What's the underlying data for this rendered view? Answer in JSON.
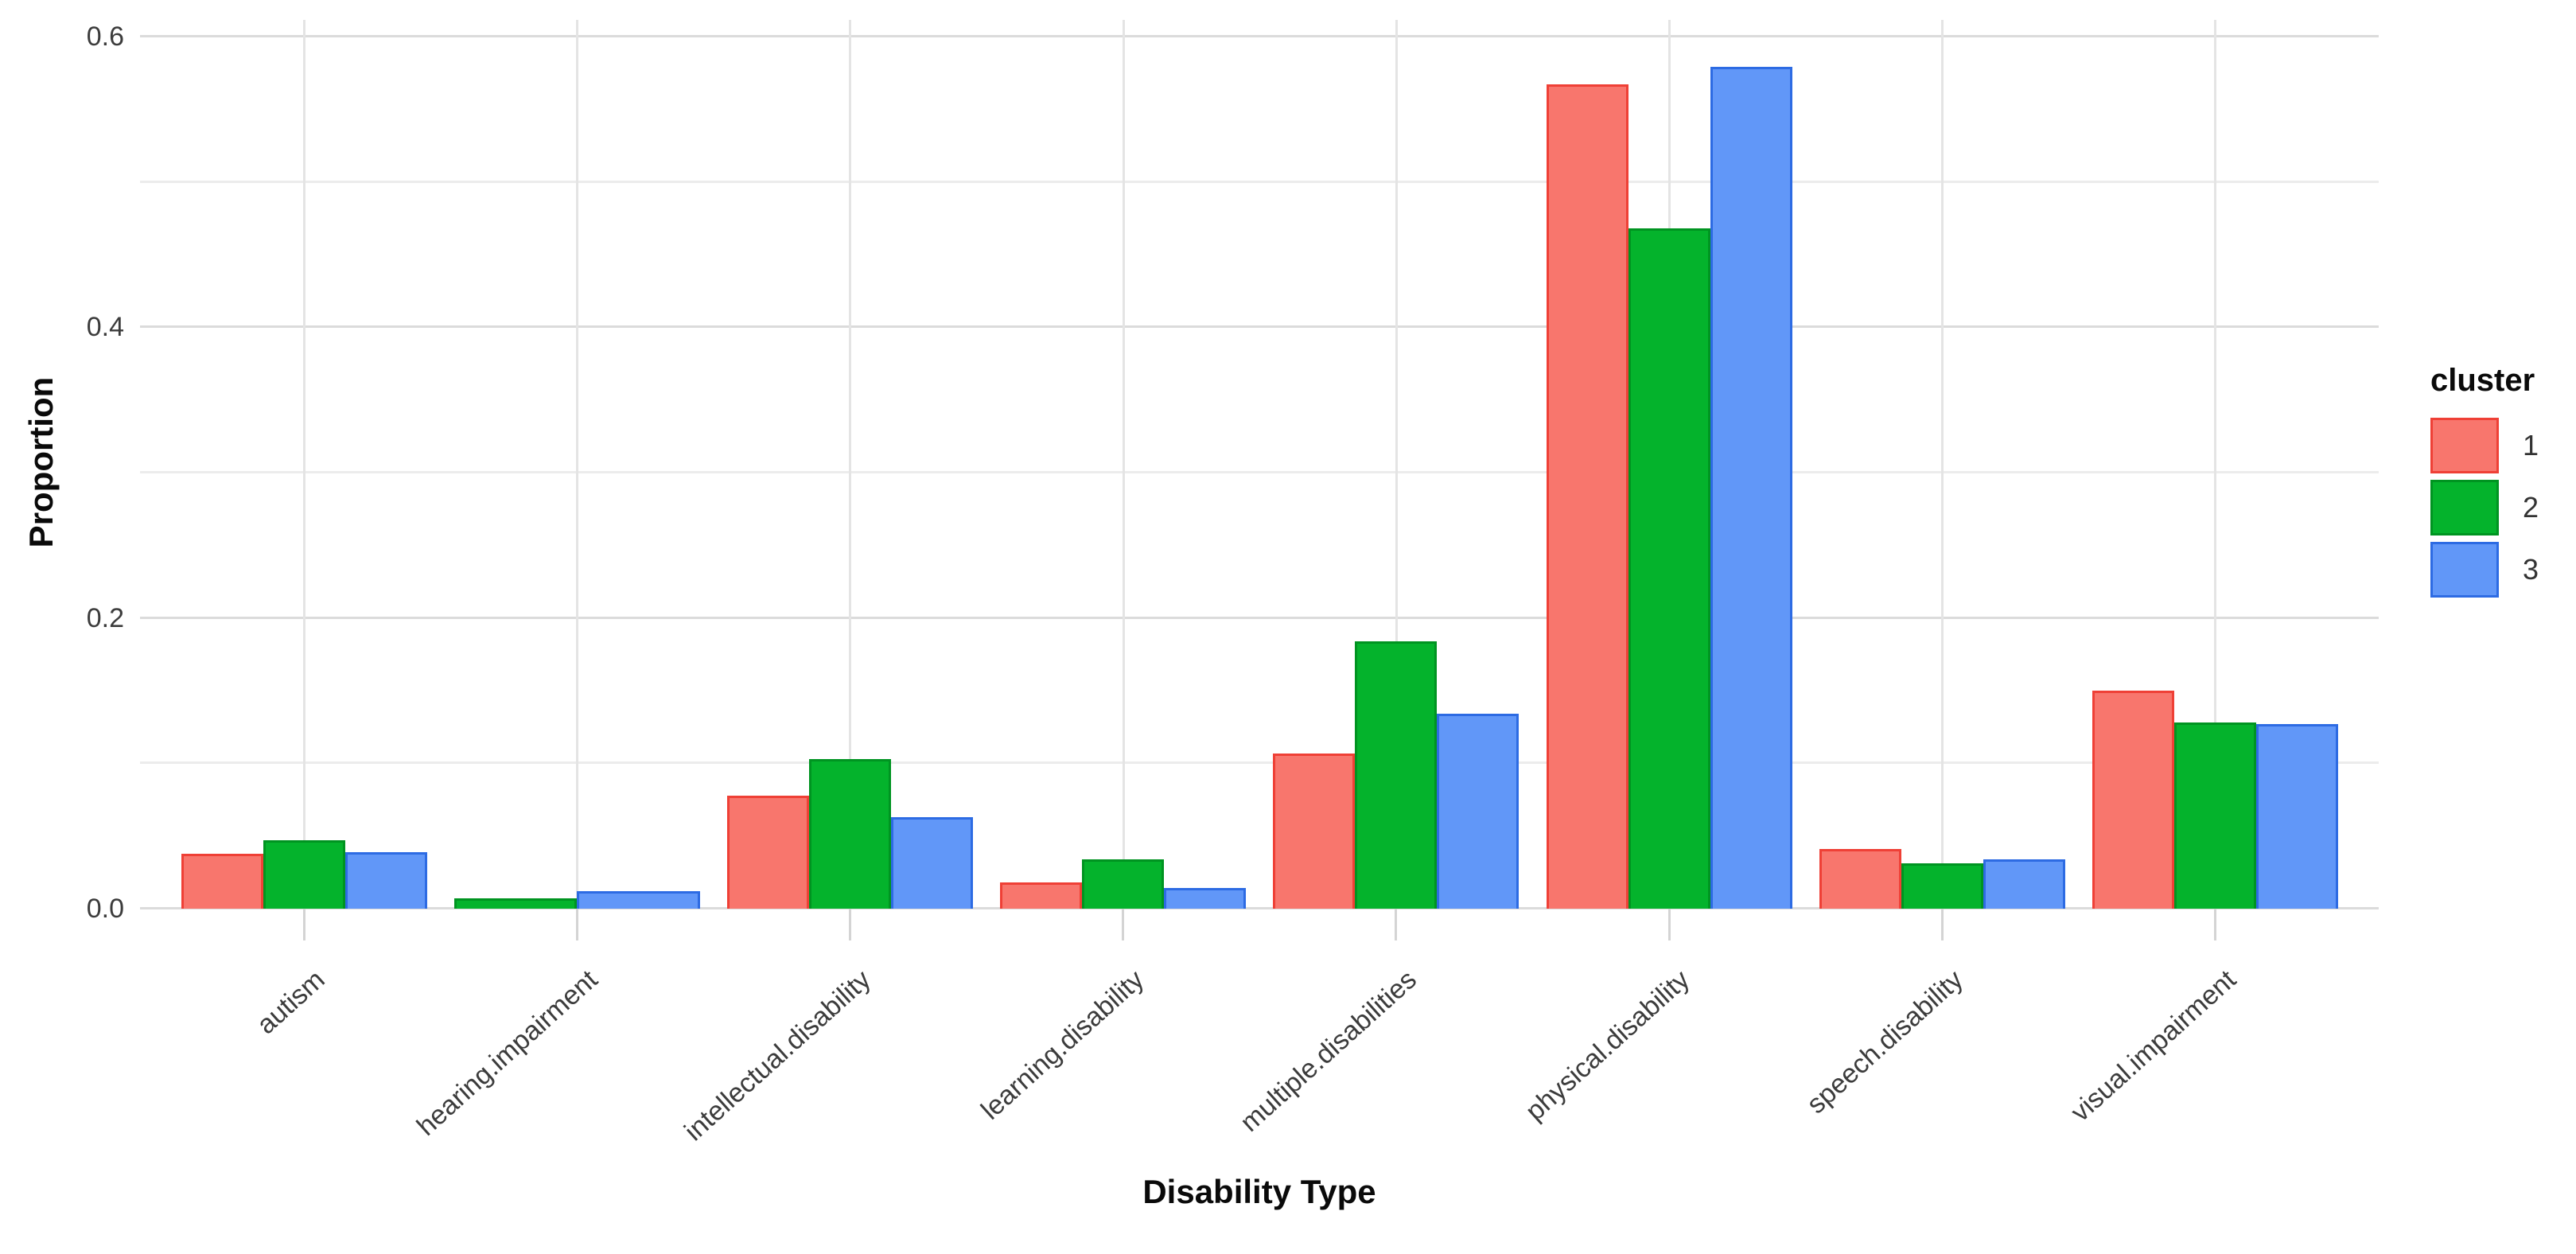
{
  "chart_data": {
    "type": "bar",
    "title": "",
    "xlabel": "Disability Type",
    "ylabel": "Proportion",
    "legend_title": "cluster",
    "legend_position": "right",
    "grid": true,
    "ylim": [
      0,
      0.6
    ],
    "yticks": [
      0.0,
      0.2,
      0.4,
      0.6
    ],
    "ytick_labels": [
      "0.0",
      "0.2",
      "0.4",
      "0.6"
    ],
    "minor_gridlines": [
      0.1,
      0.3,
      0.5
    ],
    "categories": [
      "autism",
      "hearing.impairment",
      "intellectual.disability",
      "learning.disability",
      "multiple.disabilities",
      "physical.disability",
      "speech.disability",
      "visual.impairment"
    ],
    "series": [
      {
        "name": "1",
        "fill": "#F8766D",
        "stroke": "#EF4036",
        "values": [
          0.038,
          null,
          0.078,
          0.018,
          0.107,
          0.567,
          0.041,
          0.15
        ]
      },
      {
        "name": "2",
        "fill": "#04B32C",
        "stroke": "#009421",
        "values": [
          0.047,
          0.007,
          0.103,
          0.034,
          0.184,
          0.468,
          0.031,
          0.128
        ]
      },
      {
        "name": "3",
        "fill": "#6197F8",
        "stroke": "#2D6BE3",
        "values": [
          0.039,
          0.012,
          0.063,
          0.014,
          0.134,
          0.579,
          0.034,
          0.127
        ]
      }
    ],
    "colors": {
      "background": "#FFFFFF",
      "major_grid": "#DBDBDB",
      "minor_grid": "#ECECEC",
      "vertical_grid": "#E4E4E4",
      "axis_tick": "#D4D4D4",
      "tick_text": "#3C3C3C",
      "title_text": "#0A0A0A"
    }
  }
}
